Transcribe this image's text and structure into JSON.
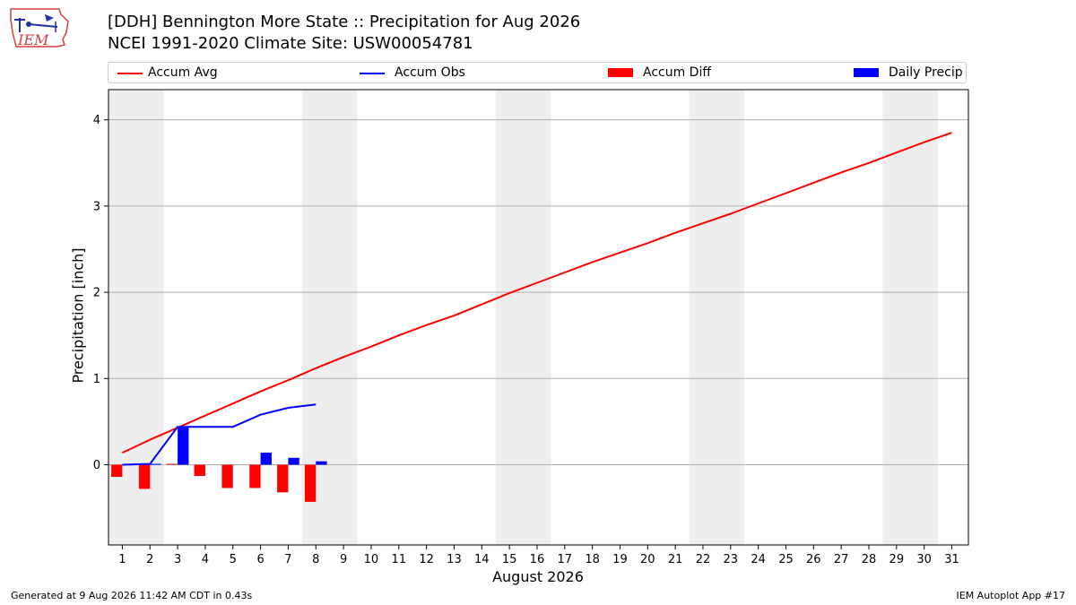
{
  "header": {
    "title_line1": "[DDH] Bennington More State :: Precipitation for Aug 2026",
    "title_line2": "NCEI 1991-2020 Climate Site: USW00054781"
  },
  "logo": {
    "text": "IEM"
  },
  "legend": {
    "items": [
      {
        "label": "Accum Avg",
        "kind": "line",
        "color": "#ff0000"
      },
      {
        "label": "Accum Obs",
        "kind": "line",
        "color": "#0000ff"
      },
      {
        "label": "Accum Diff",
        "kind": "box",
        "color": "#ff0000"
      },
      {
        "label": "Daily Precip",
        "kind": "box",
        "color": "#0000ff"
      }
    ]
  },
  "footer": {
    "generated": "Generated at 9 Aug 2026 11:42 AM CDT in 0.43s",
    "app": "IEM Autoplot App #17"
  },
  "chart_data": {
    "type": "line",
    "xlabel": "August 2026",
    "ylabel": "Precipitation [inch]",
    "x": [
      1,
      2,
      3,
      4,
      5,
      6,
      7,
      8,
      9,
      10,
      11,
      12,
      13,
      14,
      15,
      16,
      17,
      18,
      19,
      20,
      21,
      22,
      23,
      24,
      25,
      26,
      27,
      28,
      29,
      30,
      31
    ],
    "xlim": [
      0.5,
      31.6
    ],
    "ylim": [
      -0.93,
      4.35
    ],
    "yticks": [
      0,
      1,
      2,
      3,
      4
    ],
    "grid": "y",
    "legend_position": "top",
    "weekend_shading": [
      [
        0.5,
        2.5
      ],
      [
        7.5,
        9.5
      ],
      [
        14.5,
        16.5
      ],
      [
        21.5,
        23.5
      ],
      [
        28.5,
        30.5
      ]
    ],
    "series": [
      {
        "name": "Accum Avg",
        "type": "line",
        "color": "#ff0000",
        "x": [
          1,
          2,
          3,
          4,
          5,
          6,
          7,
          8,
          9,
          10,
          11,
          12,
          13,
          14,
          15,
          16,
          17,
          18,
          19,
          20,
          21,
          22,
          23,
          24,
          25,
          26,
          27,
          28,
          29,
          30,
          31
        ],
        "values": [
          0.14,
          0.29,
          0.43,
          0.57,
          0.71,
          0.85,
          0.98,
          1.12,
          1.25,
          1.37,
          1.5,
          1.62,
          1.73,
          1.86,
          1.99,
          2.11,
          2.23,
          2.35,
          2.46,
          2.57,
          2.69,
          2.8,
          2.91,
          3.03,
          3.15,
          3.27,
          3.39,
          3.5,
          3.62,
          3.74,
          3.85
        ]
      },
      {
        "name": "Accum Obs",
        "type": "line",
        "color": "#0000ff",
        "x": [
          1,
          2,
          3,
          4,
          5,
          6,
          7,
          8
        ],
        "values": [
          0.0,
          0.01,
          0.44,
          0.44,
          0.44,
          0.58,
          0.66,
          0.7
        ]
      },
      {
        "name": "Accum Diff",
        "type": "bar",
        "color": "#ff0000",
        "x": [
          1,
          2,
          3,
          4,
          5,
          6,
          7,
          8
        ],
        "values": [
          -0.14,
          -0.28,
          0.01,
          -0.13,
          -0.27,
          -0.27,
          -0.32,
          -0.43
        ]
      },
      {
        "name": "Daily Precip",
        "type": "bar",
        "color": "#0000ff",
        "x": [
          1,
          2,
          3,
          4,
          5,
          6,
          7,
          8
        ],
        "values": [
          0.0,
          0.01,
          0.43,
          0.0,
          0.0,
          0.14,
          0.08,
          0.04
        ]
      }
    ]
  }
}
